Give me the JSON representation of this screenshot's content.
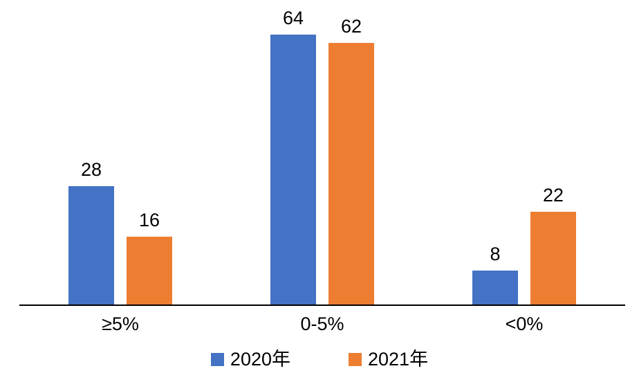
{
  "chart_data": {
    "type": "bar",
    "title": "",
    "xlabel": "",
    "ylabel": "",
    "categories": [
      "≥5%",
      "0-5%",
      "<0%"
    ],
    "series": [
      {
        "name": "2020年",
        "color": "#4472C4",
        "values": [
          28,
          64,
          8
        ]
      },
      {
        "name": "2021年",
        "color": "#ED7D31",
        "values": [
          16,
          62,
          22
        ]
      }
    ],
    "ylim": [
      0,
      70
    ],
    "grid": false,
    "y_axis_visible": false,
    "data_labels": true,
    "legend_position": "bottom",
    "axis_line_color": "#000000",
    "text_color": "#000000",
    "background_color": "#FFFFFF"
  }
}
